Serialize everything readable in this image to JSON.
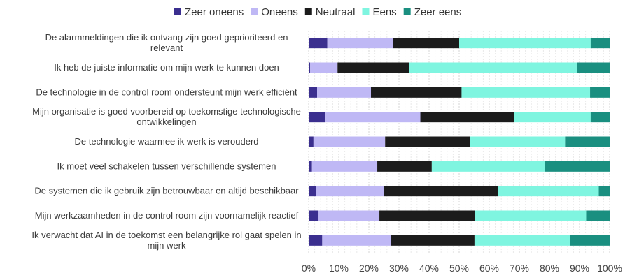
{
  "chart_data": {
    "type": "bar",
    "orientation": "horizontal",
    "stacked": true,
    "title": "",
    "xlabel": "",
    "ylabel": "",
    "xlim": [
      0,
      100
    ],
    "x_ticks": [
      "0%",
      "10%",
      "20%",
      "30%",
      "40%",
      "50%",
      "60%",
      "70%",
      "80%",
      "90%",
      "100%"
    ],
    "legend_position": "top-center",
    "grid": true,
    "categories": [
      [
        "De alarmmeldingen die ik ontvang zijn goed geprioriteerd en",
        "relevant"
      ],
      [
        "Ik heb de juiste informatie om mijn werk te kunnen doen"
      ],
      [
        "De technologie in de control room ondersteunt mijn werk efficiënt"
      ],
      [
        "Mijn organisatie is goed voorbereid op toekomstige technologische",
        "ontwikkelingen"
      ],
      [
        "De technologie waarmee ik werk is verouderd"
      ],
      [
        "Ik moet veel schakelen tussen verschillende systemen"
      ],
      [
        "De systemen die ik gebruik zijn betrouwbaar en altijd beschikbaar"
      ],
      [
        "Mijn werkzaamheden in de control room zijn voornamelijk reactief"
      ],
      [
        "Ik verwacht dat AI in de toekomst een belangrijke rol gaat spelen in",
        "mijn werk"
      ]
    ],
    "series": [
      {
        "name": "Zeer oneens",
        "color": "#3b2f8f",
        "values": [
          6.2,
          0.5,
          2.8,
          5.6,
          1.6,
          1.1,
          2.4,
          3.3,
          4.5
        ]
      },
      {
        "name": "Oneens",
        "color": "#bfb8f5",
        "values": [
          21.8,
          9.1,
          17.9,
          31.5,
          23.8,
          21.7,
          22.7,
          20.2,
          22.8
        ]
      },
      {
        "name": "Neutraal",
        "color": "#1c1c1c",
        "values": [
          22.0,
          23.7,
          30.1,
          31.1,
          28.2,
          18.1,
          37.8,
          31.8,
          27.8
        ]
      },
      {
        "name": "Eens",
        "color": "#7ff5e0",
        "values": [
          43.7,
          56.0,
          42.7,
          25.5,
          31.6,
          37.6,
          33.5,
          36.9,
          31.8
        ]
      },
      {
        "name": "Zeer eens",
        "color": "#1a8f80",
        "values": [
          6.3,
          10.7,
          6.5,
          6.3,
          14.8,
          21.5,
          3.6,
          7.8,
          13.1
        ]
      }
    ]
  }
}
